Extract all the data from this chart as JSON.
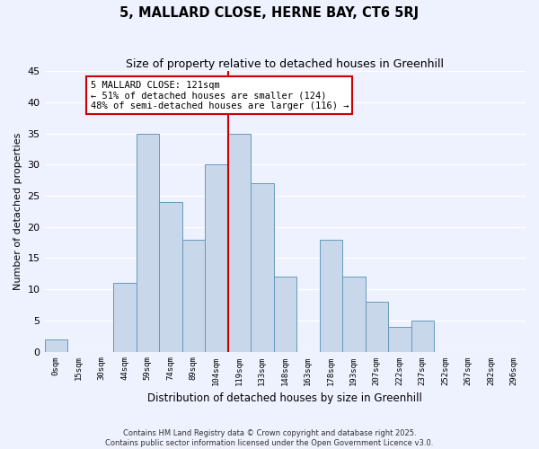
{
  "title": "5, MALLARD CLOSE, HERNE BAY, CT6 5RJ",
  "subtitle": "Size of property relative to detached houses in Greenhill",
  "xlabel": "Distribution of detached houses by size in Greenhill",
  "ylabel": "Number of detached properties",
  "bin_labels": [
    "0sqm",
    "15sqm",
    "30sqm",
    "44sqm",
    "59sqm",
    "74sqm",
    "89sqm",
    "104sqm",
    "119sqm",
    "133sqm",
    "148sqm",
    "163sqm",
    "178sqm",
    "193sqm",
    "207sqm",
    "222sqm",
    "237sqm",
    "252sqm",
    "267sqm",
    "282sqm",
    "296sqm"
  ],
  "bar_values": [
    2,
    0,
    0,
    11,
    35,
    24,
    18,
    30,
    35,
    27,
    12,
    0,
    18,
    12,
    8,
    4,
    5,
    0,
    0,
    0,
    0
  ],
  "bar_color": "#c8d8ea",
  "bar_edge_color": "#6699bb",
  "vline_index": 8,
  "vline_color": "#cc0000",
  "annotation_title": "5 MALLARD CLOSE: 121sqm",
  "annotation_line1": "← 51% of detached houses are smaller (124)",
  "annotation_line2": "48% of semi-detached houses are larger (116) →",
  "annotation_box_color": "#ffffff",
  "annotation_box_edge": "#cc0000",
  "ylim": [
    0,
    45
  ],
  "yticks": [
    0,
    5,
    10,
    15,
    20,
    25,
    30,
    35,
    40,
    45
  ],
  "background_color": "#eef2ff",
  "grid_color": "#ffffff",
  "footer_line1": "Contains HM Land Registry data © Crown copyright and database right 2025.",
  "footer_line2": "Contains public sector information licensed under the Open Government Licence v3.0."
}
